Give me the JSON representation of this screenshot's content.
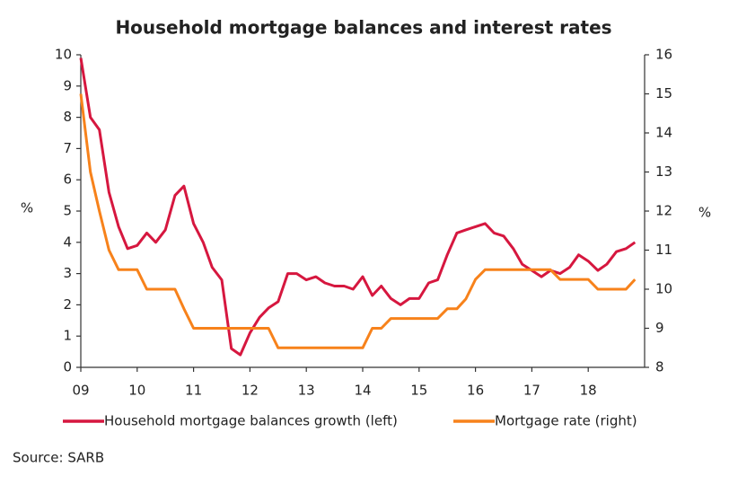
{
  "chart_data": {
    "type": "line",
    "title": "Household mortgage balances and interest rates",
    "ylabel": "%",
    "y2label": "%",
    "source": "Source: SARB",
    "x": [
      2009,
      2009.17,
      2009.33,
      2009.5,
      2009.67,
      2009.83,
      2010,
      2010.17,
      2010.33,
      2010.5,
      2010.67,
      2010.83,
      2011,
      2011.17,
      2011.33,
      2011.5,
      2011.67,
      2011.83,
      2012,
      2012.17,
      2012.33,
      2012.5,
      2012.67,
      2012.83,
      2013,
      2013.17,
      2013.33,
      2013.5,
      2013.67,
      2013.83,
      2014,
      2014.17,
      2014.33,
      2014.5,
      2014.67,
      2014.83,
      2015,
      2015.17,
      2015.33,
      2015.5,
      2015.67,
      2015.83,
      2016,
      2016.17,
      2016.33,
      2016.5,
      2016.67,
      2016.83,
      2017,
      2017.17,
      2017.33,
      2017.5,
      2017.67,
      2017.83,
      2018,
      2018.17,
      2018.33,
      2018.5,
      2018.67,
      2018.83
    ],
    "series": [
      {
        "name": "Household mortgage balances growth (left)",
        "color": "#d6173f",
        "axis": "y",
        "values": [
          9.9,
          8.0,
          7.6,
          5.6,
          4.5,
          3.8,
          3.9,
          4.3,
          4.0,
          4.4,
          5.5,
          5.8,
          4.6,
          4.0,
          3.2,
          2.8,
          0.6,
          0.4,
          1.1,
          1.6,
          1.9,
          2.1,
          3.0,
          3.0,
          2.8,
          2.9,
          2.7,
          2.6,
          2.6,
          2.5,
          2.9,
          2.3,
          2.6,
          2.2,
          2.0,
          2.2,
          2.2,
          2.7,
          2.8,
          3.6,
          4.3,
          4.4,
          4.5,
          4.6,
          4.3,
          4.2,
          3.8,
          3.3,
          3.1,
          2.9,
          3.1,
          3.0,
          3.2,
          3.6,
          3.4,
          3.1,
          3.3,
          3.7,
          3.8,
          4.0
        ]
      },
      {
        "name": "Mortgage rate (right)",
        "color": "#f7821b",
        "axis": "y2",
        "values": [
          15.0,
          13.0,
          12.0,
          11.0,
          10.5,
          10.5,
          10.5,
          10.0,
          10.0,
          10.0,
          10.0,
          9.5,
          9.0,
          9.0,
          9.0,
          9.0,
          9.0,
          9.0,
          9.0,
          9.0,
          9.0,
          8.5,
          8.5,
          8.5,
          8.5,
          8.5,
          8.5,
          8.5,
          8.5,
          8.5,
          8.5,
          9.0,
          9.0,
          9.25,
          9.25,
          9.25,
          9.25,
          9.25,
          9.25,
          9.5,
          9.5,
          9.75,
          10.25,
          10.5,
          10.5,
          10.5,
          10.5,
          10.5,
          10.5,
          10.5,
          10.5,
          10.25,
          10.25,
          10.25,
          10.25,
          10.0,
          10.0,
          10.0,
          10.0,
          10.25
        ]
      }
    ],
    "xlim": [
      2009,
      2019
    ],
    "xticks": [
      {
        "value": 2009,
        "label": "09"
      },
      {
        "value": 2010,
        "label": "10"
      },
      {
        "value": 2011,
        "label": "11"
      },
      {
        "value": 2012,
        "label": "12"
      },
      {
        "value": 2013,
        "label": "13"
      },
      {
        "value": 2014,
        "label": "14"
      },
      {
        "value": 2015,
        "label": "15"
      },
      {
        "value": 2016,
        "label": "16"
      },
      {
        "value": 2017,
        "label": "17"
      },
      {
        "value": 2018,
        "label": "18"
      }
    ],
    "ylim": [
      0,
      10
    ],
    "yticks": [
      0,
      1,
      2,
      3,
      4,
      5,
      6,
      7,
      8,
      9,
      10
    ],
    "y2lim": [
      8,
      16
    ],
    "y2ticks": [
      8,
      9,
      10,
      11,
      12,
      13,
      14,
      15,
      16
    ],
    "grid": false,
    "legend": "bottom"
  }
}
